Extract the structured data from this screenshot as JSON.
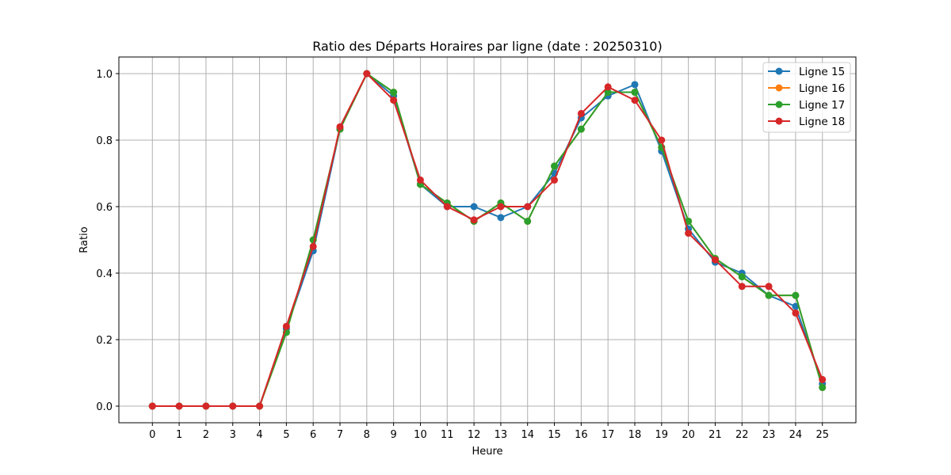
{
  "chart_data": {
    "type": "line",
    "title": "Ratio des Départs Horaires par ligne (date : 20250310)",
    "xlabel": "Heure",
    "ylabel": "Ratio",
    "x": [
      0,
      1,
      2,
      3,
      4,
      5,
      6,
      7,
      8,
      9,
      10,
      11,
      12,
      13,
      14,
      15,
      16,
      17,
      18,
      19,
      20,
      21,
      22,
      23,
      24,
      25
    ],
    "xlim": [
      -1.25,
      26.25
    ],
    "ylim": [
      -0.05,
      1.05
    ],
    "yticks": [
      0.0,
      0.2,
      0.4,
      0.6,
      0.8,
      1.0
    ],
    "ytick_labels": [
      "0.0",
      "0.2",
      "0.4",
      "0.6",
      "0.8",
      "1.0"
    ],
    "grid": true,
    "legend_position": "top-right",
    "series": [
      {
        "name": "Ligne 15",
        "color": "#1f77b4",
        "values": [
          0,
          0,
          0,
          0,
          0,
          0.233,
          0.467,
          0.833,
          1.0,
          0.933,
          0.667,
          0.6,
          0.6,
          0.567,
          0.6,
          0.7,
          0.867,
          0.933,
          0.967,
          0.767,
          0.533,
          0.433,
          0.4,
          0.333,
          0.3,
          0.067
        ]
      },
      {
        "name": "Ligne 16",
        "color": "#ff7f0e",
        "values": [
          0,
          0,
          0,
          0,
          0,
          0.222,
          0.5,
          0.833,
          1.0,
          0.944,
          0.667,
          0.611,
          0.556,
          0.611,
          0.556,
          0.722,
          0.833,
          0.944,
          0.944,
          0.778,
          0.556,
          0.444,
          0.389,
          0.333,
          0.333,
          0.056
        ]
      },
      {
        "name": "Ligne 17",
        "color": "#2ca02c",
        "values": [
          0,
          0,
          0,
          0,
          0,
          0.222,
          0.5,
          0.833,
          1.0,
          0.944,
          0.667,
          0.611,
          0.556,
          0.611,
          0.556,
          0.722,
          0.833,
          0.944,
          0.944,
          0.778,
          0.556,
          0.444,
          0.389,
          0.333,
          0.333,
          0.056
        ]
      },
      {
        "name": "Ligne 18",
        "color": "#d62728",
        "values": [
          0,
          0,
          0,
          0,
          0,
          0.24,
          0.48,
          0.84,
          1.0,
          0.92,
          0.68,
          0.6,
          0.56,
          0.6,
          0.6,
          0.68,
          0.88,
          0.96,
          0.92,
          0.8,
          0.52,
          0.44,
          0.36,
          0.36,
          0.28,
          0.08
        ]
      }
    ]
  }
}
